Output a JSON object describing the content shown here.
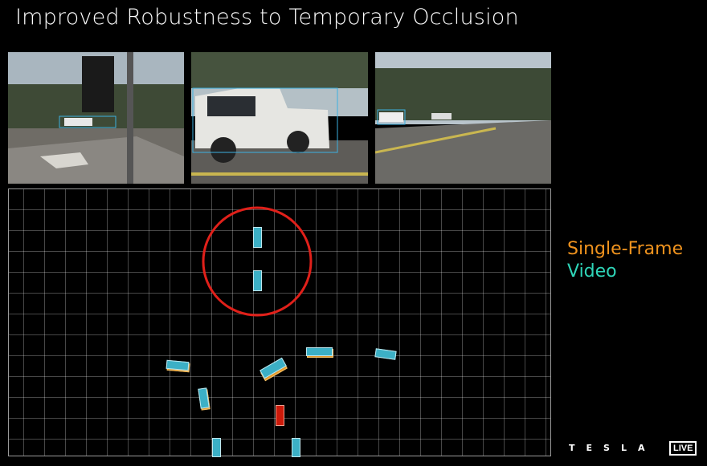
{
  "title": "Improved Robustness to Temporary Occlusion",
  "legend": {
    "single_frame": {
      "label": "Single-Frame",
      "color": "#f0931e"
    },
    "video": {
      "label": "Video",
      "color": "#2fd5b8"
    }
  },
  "colors": {
    "occluded_highlight": "#e0201a",
    "ego_vehicle": "#cc1a0a",
    "detection": "#3cb0c6"
  },
  "brand": {
    "logo": "TESLA",
    "badge": "LIVE"
  }
}
